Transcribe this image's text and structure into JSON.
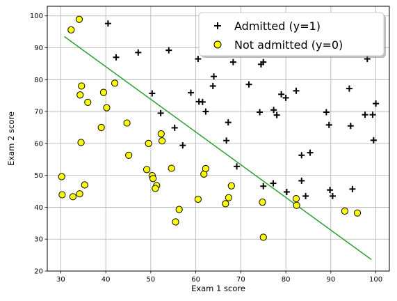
{
  "chart_data": {
    "type": "scatter",
    "xlabel": "Exam 1 score",
    "ylabel": "Exam 2 score",
    "xlim": [
      27,
      103
    ],
    "ylim": [
      20,
      103
    ],
    "xticks": [
      30,
      40,
      50,
      60,
      70,
      80,
      90,
      100
    ],
    "yticks": [
      20,
      30,
      40,
      50,
      60,
      70,
      80,
      90,
      100
    ],
    "grid": true,
    "legend_position": "top-right",
    "series": [
      {
        "name": "Admitted (y=1)",
        "marker": "plus",
        "color": "#000000",
        "points": [
          [
            40.5,
            97.6
          ],
          [
            42.3,
            87.0
          ],
          [
            47.2,
            88.5
          ],
          [
            54.0,
            89.2
          ],
          [
            60.5,
            86.5
          ],
          [
            50.3,
            75.7
          ],
          [
            52.2,
            69.5
          ],
          [
            55.3,
            64.9
          ],
          [
            57.1,
            59.4
          ],
          [
            58.9,
            75.9
          ],
          [
            60.7,
            73.1
          ],
          [
            61.5,
            73.0
          ],
          [
            62.2,
            70.0
          ],
          [
            63.8,
            78.0
          ],
          [
            64.0,
            81.0
          ],
          [
            66.8,
            60.9
          ],
          [
            67.2,
            66.6
          ],
          [
            68.3,
            85.5
          ],
          [
            69.1,
            52.8
          ],
          [
            71.8,
            78.5
          ],
          [
            74.2,
            69.8
          ],
          [
            74.5,
            84.8
          ],
          [
            75.0,
            85.5
          ],
          [
            75.0,
            46.6
          ],
          [
            77.2,
            47.5
          ],
          [
            77.3,
            70.5
          ],
          [
            78.0,
            68.9
          ],
          [
            79.0,
            75.4
          ],
          [
            80.0,
            74.3
          ],
          [
            80.2,
            44.8
          ],
          [
            82.3,
            76.5
          ],
          [
            83.5,
            56.3
          ],
          [
            83.5,
            48.3
          ],
          [
            84.4,
            43.5
          ],
          [
            85.4,
            57.1
          ],
          [
            89.0,
            69.8
          ],
          [
            89.6,
            65.8
          ],
          [
            89.8,
            45.4
          ],
          [
            90.4,
            43.5
          ],
          [
            94.1,
            77.2
          ],
          [
            94.4,
            65.5
          ],
          [
            94.8,
            45.7
          ],
          [
            97.6,
            69.0
          ],
          [
            98.1,
            86.5
          ],
          [
            99.3,
            69.0
          ],
          [
            99.5,
            61.0
          ],
          [
            100.0,
            72.5
          ]
        ]
      },
      {
        "name": "Not admitted (y=0)",
        "marker": "circle",
        "color": "#ffff00",
        "edgecolor": "#000000",
        "points": [
          [
            32.3,
            95.6
          ],
          [
            34.1,
            98.9
          ],
          [
            34.6,
            78.0
          ],
          [
            34.3,
            75.2
          ],
          [
            36.0,
            72.9
          ],
          [
            39.5,
            76.0
          ],
          [
            40.2,
            71.2
          ],
          [
            42.0,
            78.9
          ],
          [
            39.0,
            65.0
          ],
          [
            44.7,
            66.4
          ],
          [
            34.5,
            60.3
          ],
          [
            45.1,
            56.3
          ],
          [
            49.5,
            60.0
          ],
          [
            52.3,
            63.0
          ],
          [
            52.5,
            60.8
          ],
          [
            30.2,
            49.6
          ],
          [
            30.3,
            43.9
          ],
          [
            32.7,
            43.3
          ],
          [
            34.2,
            44.2
          ],
          [
            35.3,
            47.0
          ],
          [
            49.1,
            51.8
          ],
          [
            50.3,
            49.9
          ],
          [
            50.5,
            49.0
          ],
          [
            51.3,
            46.8
          ],
          [
            51.0,
            45.9
          ],
          [
            54.6,
            52.2
          ],
          [
            56.3,
            39.3
          ],
          [
            55.5,
            35.4
          ],
          [
            60.5,
            42.5
          ],
          [
            61.8,
            50.4
          ],
          [
            62.2,
            52.1
          ],
          [
            66.6,
            41.1
          ],
          [
            67.3,
            43.0
          ],
          [
            67.9,
            46.7
          ],
          [
            74.8,
            41.6
          ],
          [
            75.0,
            30.6
          ],
          [
            82.3,
            42.7
          ],
          [
            82.4,
            40.6
          ],
          [
            93.1,
            38.8
          ],
          [
            95.9,
            38.2
          ]
        ]
      }
    ],
    "decision_boundary": {
      "color": "#2ca02c",
      "x": [
        30.8,
        99.0
      ],
      "y": [
        93.5,
        23.6
      ]
    }
  }
}
